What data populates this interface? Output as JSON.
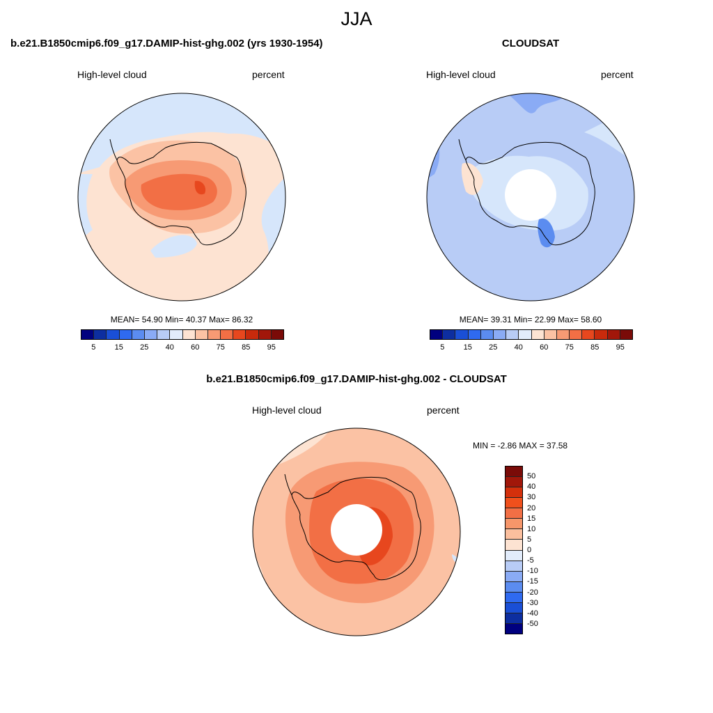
{
  "season": "JJA",
  "panels": [
    {
      "title": "b.e21.B1850cmip6.f09_g17.DAMIP-hist-ghg.002 (yrs 1930-1954)",
      "variable": "High-level cloud",
      "units": "percent",
      "stats": "MEAN=  54.90  Min=  40.37  Max=  86.32",
      "mean": 54.9,
      "min": 40.37,
      "max": 86.32
    },
    {
      "title": "CLOUDSAT",
      "variable": "High-level cloud",
      "units": "percent",
      "stats": "MEAN=  39.31  Min=  22.99  Max=  58.60",
      "mean": 39.31,
      "min": 22.99,
      "max": 58.6
    }
  ],
  "diff": {
    "title": "b.e21.B1850cmip6.f09_g17.DAMIP-hist-ghg.002 - CLOUDSAT",
    "variable": "High-level cloud",
    "units": "percent",
    "stats": "MIN =  -2.86 MAX =  37.58",
    "min": -2.86,
    "max": 37.58
  },
  "abs_colorbar": {
    "ticks": [
      "5",
      "15",
      "25",
      "40",
      "60",
      "75",
      "85",
      "95"
    ],
    "colors": [
      "#00007f",
      "#0d2ea0",
      "#1a4fd6",
      "#2f6af0",
      "#5b8cf0",
      "#8aabf5",
      "#b8ccf6",
      "#e2ecfb",
      "#fde3d2",
      "#fbc2a4",
      "#f79a74",
      "#f26f45",
      "#e7471e",
      "#c82a0c",
      "#a1170a",
      "#7a0b08"
    ]
  },
  "diff_colorbar": {
    "ticks": [
      "50",
      "40",
      "30",
      "20",
      "15",
      "10",
      "5",
      "0",
      "-5",
      "-10",
      "-15",
      "-20",
      "-30",
      "-40",
      "-50"
    ],
    "colors": [
      "#7a0b08",
      "#a1170a",
      "#d4300c",
      "#f0501c",
      "#f26f45",
      "#f6966a",
      "#fbbf9e",
      "#fde3d2",
      "#e2ecfb",
      "#b8ccf6",
      "#8aabf5",
      "#5b8cf0",
      "#2f6af0",
      "#1a4fd6",
      "#0d2ea0",
      "#00007f"
    ]
  },
  "colors": {
    "land_outline": "#000000",
    "ocean_low": "#d6e6fb",
    "light_orange": "#fde3d2",
    "orange": "#f8a884",
    "red_orange": "#f26f45",
    "deep_red": "#e7471e",
    "blue": "#aac4f5",
    "deep_blue": "#4f80ee"
  }
}
